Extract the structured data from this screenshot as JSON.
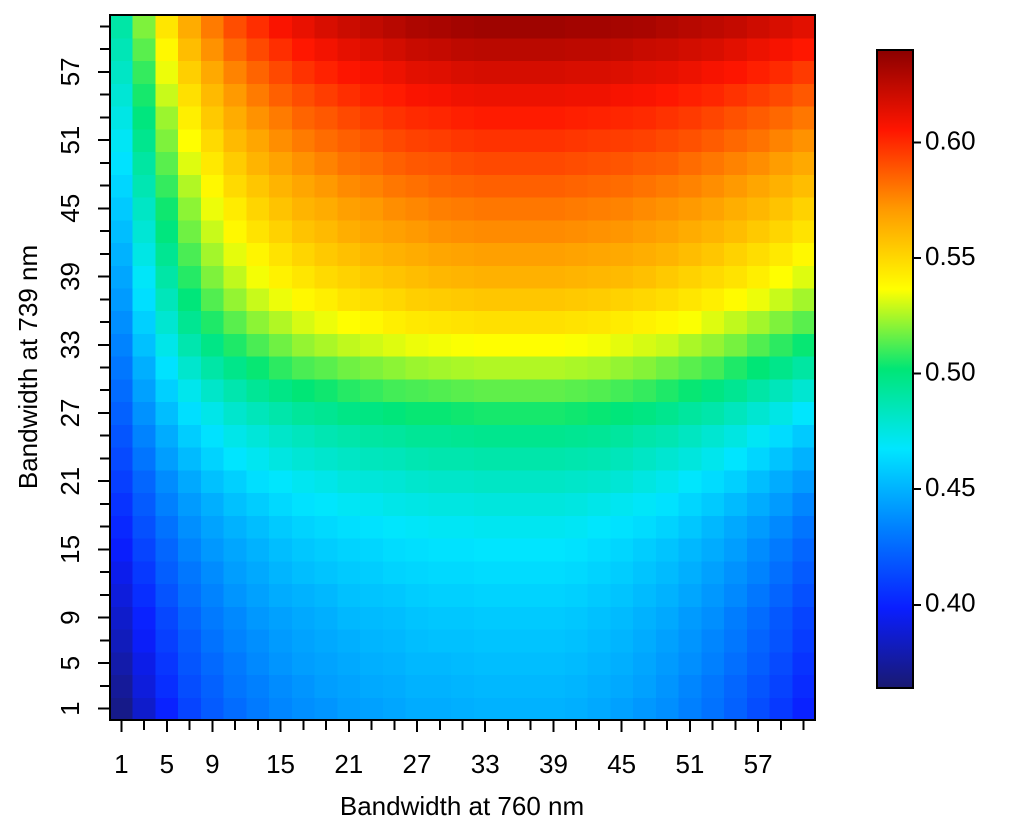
{
  "chart_data": {
    "type": "heatmap",
    "xlabel": "Bandwidth at 760 nm",
    "ylabel": "Bandwidth at 739 nm",
    "x": [
      1,
      3,
      5,
      7,
      9,
      11,
      13,
      15,
      17,
      19,
      21,
      23,
      25,
      27,
      29,
      31,
      33,
      35,
      37,
      39,
      41,
      43,
      45,
      47,
      49,
      51,
      53,
      55,
      57,
      59,
      61
    ],
    "y": [
      1,
      3,
      5,
      7,
      9,
      11,
      13,
      15,
      17,
      19,
      21,
      23,
      25,
      27,
      29,
      31,
      33,
      35,
      37,
      39,
      41,
      43,
      45,
      47,
      49,
      51,
      53,
      55,
      57,
      59,
      61
    ],
    "xlim": [
      0,
      62
    ],
    "ylim": [
      0,
      62
    ],
    "xticks": [
      1,
      5,
      9,
      15,
      21,
      27,
      33,
      39,
      45,
      51,
      57
    ],
    "yticks": [
      1,
      5,
      9,
      15,
      21,
      27,
      33,
      39,
      45,
      51,
      57
    ],
    "zlim": [
      0.364,
      0.64
    ],
    "zticks": [
      {
        "value": 0.4,
        "label": "0.40"
      },
      0.45,
      {
        "value": 0.5,
        "label": "0.50"
      },
      0.55,
      {
        "value": 0.6,
        "label": "0.60"
      }
    ],
    "colorscale": [
      "#191970",
      "#0a1eff",
      "#0080ff",
      "#00e6ff",
      "#00e676",
      "#ffff00",
      "#ff9a00",
      "#ff1500",
      "#8b0000"
    ],
    "z": [
      [
        0.37,
        0.386,
        0.4,
        0.412,
        0.42,
        0.426,
        0.431,
        0.435,
        0.438,
        0.44,
        0.443,
        0.444,
        0.446,
        0.448,
        0.448,
        0.449,
        0.45,
        0.45,
        0.45,
        0.45,
        0.449,
        0.447,
        0.444,
        0.441,
        0.438,
        0.433,
        0.428,
        0.422,
        0.415,
        0.408,
        0.4
      ],
      [
        0.374,
        0.39,
        0.404,
        0.415,
        0.422,
        0.429,
        0.433,
        0.437,
        0.44,
        0.443,
        0.445,
        0.447,
        0.448,
        0.45,
        0.45,
        0.451,
        0.452,
        0.452,
        0.452,
        0.452,
        0.451,
        0.449,
        0.447,
        0.444,
        0.44,
        0.435,
        0.43,
        0.424,
        0.418,
        0.411,
        0.403
      ],
      [
        0.378,
        0.393,
        0.407,
        0.418,
        0.425,
        0.431,
        0.436,
        0.44,
        0.443,
        0.445,
        0.447,
        0.449,
        0.45,
        0.452,
        0.452,
        0.453,
        0.454,
        0.454,
        0.454,
        0.454,
        0.453,
        0.451,
        0.449,
        0.446,
        0.442,
        0.438,
        0.433,
        0.427,
        0.421,
        0.414,
        0.406
      ],
      [
        0.382,
        0.397,
        0.41,
        0.42,
        0.428,
        0.434,
        0.438,
        0.442,
        0.445,
        0.447,
        0.449,
        0.451,
        0.452,
        0.454,
        0.455,
        0.455,
        0.456,
        0.456,
        0.456,
        0.456,
        0.455,
        0.453,
        0.451,
        0.448,
        0.444,
        0.44,
        0.435,
        0.43,
        0.423,
        0.417,
        0.409
      ],
      [
        0.386,
        0.4,
        0.413,
        0.423,
        0.431,
        0.436,
        0.441,
        0.444,
        0.447,
        0.449,
        0.452,
        0.453,
        0.454,
        0.456,
        0.457,
        0.457,
        0.458,
        0.458,
        0.458,
        0.458,
        0.457,
        0.455,
        0.453,
        0.45,
        0.447,
        0.442,
        0.438,
        0.432,
        0.426,
        0.419,
        0.412
      ],
      [
        0.39,
        0.404,
        0.417,
        0.427,
        0.434,
        0.44,
        0.444,
        0.448,
        0.45,
        0.452,
        0.455,
        0.456,
        0.457,
        0.459,
        0.46,
        0.46,
        0.461,
        0.461,
        0.461,
        0.461,
        0.46,
        0.458,
        0.456,
        0.453,
        0.45,
        0.446,
        0.441,
        0.436,
        0.43,
        0.423,
        0.416
      ],
      [
        0.394,
        0.408,
        0.421,
        0.43,
        0.437,
        0.443,
        0.447,
        0.451,
        0.454,
        0.456,
        0.458,
        0.459,
        0.461,
        0.462,
        0.463,
        0.463,
        0.464,
        0.464,
        0.464,
        0.464,
        0.463,
        0.461,
        0.459,
        0.456,
        0.453,
        0.449,
        0.444,
        0.439,
        0.434,
        0.427,
        0.42
      ],
      [
        0.398,
        0.412,
        0.424,
        0.434,
        0.441,
        0.446,
        0.45,
        0.454,
        0.457,
        0.459,
        0.461,
        0.462,
        0.464,
        0.465,
        0.466,
        0.466,
        0.467,
        0.467,
        0.467,
        0.467,
        0.466,
        0.464,
        0.462,
        0.459,
        0.456,
        0.452,
        0.448,
        0.443,
        0.437,
        0.431,
        0.424
      ],
      [
        0.402,
        0.416,
        0.428,
        0.438,
        0.445,
        0.45,
        0.454,
        0.458,
        0.461,
        0.463,
        0.465,
        0.466,
        0.468,
        0.469,
        0.47,
        0.47,
        0.471,
        0.471,
        0.471,
        0.471,
        0.47,
        0.468,
        0.466,
        0.464,
        0.461,
        0.457,
        0.452,
        0.447,
        0.442,
        0.436,
        0.429
      ],
      [
        0.406,
        0.42,
        0.433,
        0.442,
        0.449,
        0.455,
        0.459,
        0.463,
        0.466,
        0.468,
        0.47,
        0.471,
        0.473,
        0.474,
        0.475,
        0.475,
        0.476,
        0.476,
        0.476,
        0.476,
        0.475,
        0.473,
        0.471,
        0.469,
        0.466,
        0.462,
        0.458,
        0.453,
        0.448,
        0.442,
        0.435
      ],
      [
        0.41,
        0.424,
        0.437,
        0.447,
        0.455,
        0.46,
        0.465,
        0.468,
        0.471,
        0.473,
        0.476,
        0.477,
        0.478,
        0.48,
        0.481,
        0.481,
        0.482,
        0.482,
        0.482,
        0.482,
        0.481,
        0.48,
        0.478,
        0.475,
        0.472,
        0.468,
        0.464,
        0.46,
        0.454,
        0.448,
        0.442
      ],
      [
        0.414,
        0.429,
        0.443,
        0.453,
        0.461,
        0.467,
        0.471,
        0.475,
        0.478,
        0.48,
        0.482,
        0.484,
        0.485,
        0.487,
        0.488,
        0.488,
        0.489,
        0.489,
        0.489,
        0.489,
        0.488,
        0.487,
        0.485,
        0.482,
        0.479,
        0.476,
        0.472,
        0.467,
        0.462,
        0.456,
        0.45
      ],
      [
        0.418,
        0.434,
        0.448,
        0.459,
        0.466,
        0.473,
        0.477,
        0.481,
        0.484,
        0.487,
        0.489,
        0.491,
        0.492,
        0.494,
        0.494,
        0.495,
        0.496,
        0.496,
        0.496,
        0.496,
        0.495,
        0.494,
        0.492,
        0.489,
        0.487,
        0.483,
        0.479,
        0.475,
        0.47,
        0.464,
        0.458
      ],
      [
        0.422,
        0.439,
        0.454,
        0.465,
        0.473,
        0.48,
        0.485,
        0.489,
        0.493,
        0.495,
        0.498,
        0.499,
        0.501,
        0.503,
        0.503,
        0.504,
        0.505,
        0.505,
        0.505,
        0.505,
        0.504,
        0.503,
        0.501,
        0.499,
        0.496,
        0.492,
        0.489,
        0.484,
        0.479,
        0.474,
        0.468
      ],
      [
        0.426,
        0.444,
        0.46,
        0.472,
        0.481,
        0.488,
        0.494,
        0.498,
        0.502,
        0.504,
        0.507,
        0.509,
        0.511,
        0.512,
        0.513,
        0.514,
        0.515,
        0.515,
        0.515,
        0.515,
        0.514,
        0.513,
        0.511,
        0.509,
        0.506,
        0.503,
        0.499,
        0.495,
        0.49,
        0.485,
        0.479
      ],
      [
        0.43,
        0.449,
        0.466,
        0.48,
        0.49,
        0.497,
        0.503,
        0.508,
        0.512,
        0.514,
        0.517,
        0.519,
        0.521,
        0.523,
        0.524,
        0.525,
        0.526,
        0.526,
        0.526,
        0.526,
        0.525,
        0.524,
        0.522,
        0.52,
        0.517,
        0.514,
        0.511,
        0.506,
        0.502,
        0.497,
        0.491
      ],
      [
        0.434,
        0.455,
        0.473,
        0.488,
        0.498,
        0.506,
        0.512,
        0.517,
        0.522,
        0.525,
        0.528,
        0.53,
        0.532,
        0.534,
        0.535,
        0.536,
        0.537,
        0.537,
        0.537,
        0.537,
        0.536,
        0.535,
        0.533,
        0.531,
        0.529,
        0.525,
        0.522,
        0.518,
        0.513,
        0.508,
        0.503
      ],
      [
        0.438,
        0.46,
        0.479,
        0.495,
        0.506,
        0.514,
        0.521,
        0.526,
        0.531,
        0.534,
        0.537,
        0.539,
        0.542,
        0.544,
        0.545,
        0.546,
        0.547,
        0.547,
        0.547,
        0.547,
        0.546,
        0.545,
        0.543,
        0.541,
        0.539,
        0.536,
        0.532,
        0.528,
        0.524,
        0.519,
        0.514
      ],
      [
        0.442,
        0.465,
        0.485,
        0.501,
        0.513,
        0.522,
        0.529,
        0.534,
        0.539,
        0.542,
        0.546,
        0.548,
        0.55,
        0.553,
        0.554,
        0.555,
        0.556,
        0.556,
        0.556,
        0.556,
        0.555,
        0.554,
        0.552,
        0.55,
        0.548,
        0.545,
        0.542,
        0.538,
        0.534,
        0.529,
        0.524
      ],
      [
        0.446,
        0.469,
        0.49,
        0.507,
        0.519,
        0.528,
        0.535,
        0.541,
        0.545,
        0.549,
        0.552,
        0.555,
        0.557,
        0.559,
        0.561,
        0.562,
        0.563,
        0.563,
        0.563,
        0.563,
        0.562,
        0.561,
        0.56,
        0.558,
        0.555,
        0.552,
        0.549,
        0.546,
        0.542,
        0.537,
        0.532
      ],
      [
        0.45,
        0.474,
        0.495,
        0.512,
        0.524,
        0.533,
        0.54,
        0.546,
        0.551,
        0.555,
        0.558,
        0.561,
        0.563,
        0.565,
        0.567,
        0.568,
        0.569,
        0.569,
        0.569,
        0.569,
        0.568,
        0.567,
        0.566,
        0.564,
        0.562,
        0.559,
        0.556,
        0.552,
        0.548,
        0.544,
        0.539
      ],
      [
        0.454,
        0.478,
        0.5,
        0.517,
        0.529,
        0.539,
        0.546,
        0.552,
        0.557,
        0.56,
        0.564,
        0.567,
        0.569,
        0.571,
        0.573,
        0.574,
        0.575,
        0.575,
        0.575,
        0.575,
        0.574,
        0.573,
        0.572,
        0.57,
        0.568,
        0.565,
        0.562,
        0.559,
        0.555,
        0.551,
        0.546
      ],
      [
        0.458,
        0.482,
        0.504,
        0.521,
        0.534,
        0.543,
        0.551,
        0.557,
        0.562,
        0.565,
        0.569,
        0.571,
        0.574,
        0.576,
        0.578,
        0.579,
        0.58,
        0.58,
        0.58,
        0.58,
        0.579,
        0.578,
        0.577,
        0.575,
        0.573,
        0.571,
        0.568,
        0.564,
        0.561,
        0.557,
        0.552
      ],
      [
        0.462,
        0.487,
        0.509,
        0.526,
        0.539,
        0.549,
        0.556,
        0.562,
        0.567,
        0.571,
        0.575,
        0.577,
        0.58,
        0.582,
        0.584,
        0.585,
        0.586,
        0.586,
        0.586,
        0.586,
        0.585,
        0.584,
        0.583,
        0.581,
        0.579,
        0.577,
        0.574,
        0.571,
        0.567,
        0.563,
        0.559
      ],
      [
        0.466,
        0.491,
        0.514,
        0.532,
        0.544,
        0.554,
        0.562,
        0.568,
        0.573,
        0.577,
        0.581,
        0.583,
        0.586,
        0.588,
        0.589,
        0.591,
        0.592,
        0.592,
        0.592,
        0.592,
        0.591,
        0.59,
        0.589,
        0.587,
        0.586,
        0.583,
        0.58,
        0.577,
        0.574,
        0.57,
        0.566
      ],
      [
        0.47,
        0.496,
        0.519,
        0.537,
        0.549,
        0.56,
        0.567,
        0.574,
        0.579,
        0.583,
        0.586,
        0.589,
        0.592,
        0.594,
        0.595,
        0.597,
        0.598,
        0.598,
        0.598,
        0.598,
        0.597,
        0.596,
        0.595,
        0.594,
        0.592,
        0.59,
        0.587,
        0.584,
        0.581,
        0.577,
        0.573
      ],
      [
        0.474,
        0.5,
        0.523,
        0.542,
        0.555,
        0.565,
        0.573,
        0.579,
        0.585,
        0.588,
        0.592,
        0.595,
        0.598,
        0.6,
        0.601,
        0.603,
        0.604,
        0.604,
        0.604,
        0.604,
        0.603,
        0.602,
        0.601,
        0.6,
        0.598,
        0.596,
        0.593,
        0.59,
        0.587,
        0.584,
        0.58
      ],
      [
        0.478,
        0.505,
        0.529,
        0.547,
        0.56,
        0.571,
        0.579,
        0.586,
        0.591,
        0.595,
        0.599,
        0.602,
        0.604,
        0.607,
        0.608,
        0.61,
        0.611,
        0.611,
        0.611,
        0.611,
        0.61,
        0.61,
        0.608,
        0.607,
        0.605,
        0.603,
        0.601,
        0.598,
        0.595,
        0.592,
        0.588
      ],
      [
        0.482,
        0.509,
        0.534,
        0.553,
        0.566,
        0.577,
        0.585,
        0.592,
        0.598,
        0.602,
        0.606,
        0.608,
        0.611,
        0.614,
        0.615,
        0.617,
        0.618,
        0.618,
        0.618,
        0.618,
        0.617,
        0.617,
        0.616,
        0.614,
        0.613,
        0.611,
        0.608,
        0.606,
        0.603,
        0.6,
        0.596
      ],
      [
        0.486,
        0.514,
        0.539,
        0.559,
        0.573,
        0.584,
        0.592,
        0.599,
        0.605,
        0.609,
        0.613,
        0.616,
        0.619,
        0.622,
        0.623,
        0.625,
        0.626,
        0.626,
        0.626,
        0.626,
        0.625,
        0.625,
        0.624,
        0.622,
        0.621,
        0.619,
        0.617,
        0.614,
        0.611,
        0.608,
        0.605
      ],
      [
        0.49,
        0.519,
        0.545,
        0.565,
        0.579,
        0.591,
        0.599,
        0.607,
        0.612,
        0.617,
        0.621,
        0.624,
        0.627,
        0.63,
        0.631,
        0.633,
        0.634,
        0.634,
        0.634,
        0.634,
        0.633,
        0.633,
        0.632,
        0.631,
        0.629,
        0.627,
        0.625,
        0.623,
        0.62,
        0.617,
        0.614
      ]
    ]
  }
}
